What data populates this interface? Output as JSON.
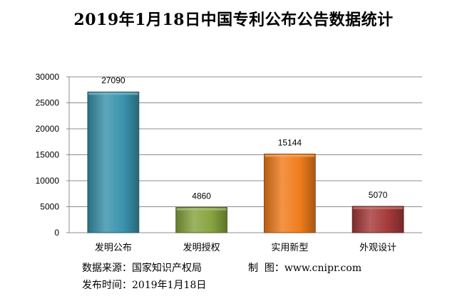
{
  "title": "2019年1月18日中国专利公布公告数据统计",
  "chart_data": {
    "type": "bar",
    "categories": [
      "发明公布",
      "发明授权",
      "实用新型",
      "外观设计"
    ],
    "values": [
      27090,
      4860,
      15144,
      5070
    ],
    "data_labels": [
      "27090",
      "4860",
      "15144",
      "5070"
    ],
    "colors": [
      "#3a93ad",
      "#86a43f",
      "#f07d1c",
      "#a63a3a"
    ],
    "ylim": [
      0,
      30000
    ],
    "yticks": [
      0,
      5000,
      10000,
      15000,
      20000,
      25000,
      30000
    ],
    "ytick_labels": [
      "0",
      "5000",
      "10000",
      "15000",
      "20000",
      "25000",
      "30000"
    ],
    "grid": true,
    "legend": "none",
    "xlabel": "",
    "ylabel": ""
  },
  "footer": {
    "source_label": "数据来源：",
    "source_value": "国家知识产权局",
    "maker_label": "制  图：",
    "maker_value": "www.cnipr.com",
    "date_label": "发布时间：",
    "date_value": "2019年1月18日"
  }
}
